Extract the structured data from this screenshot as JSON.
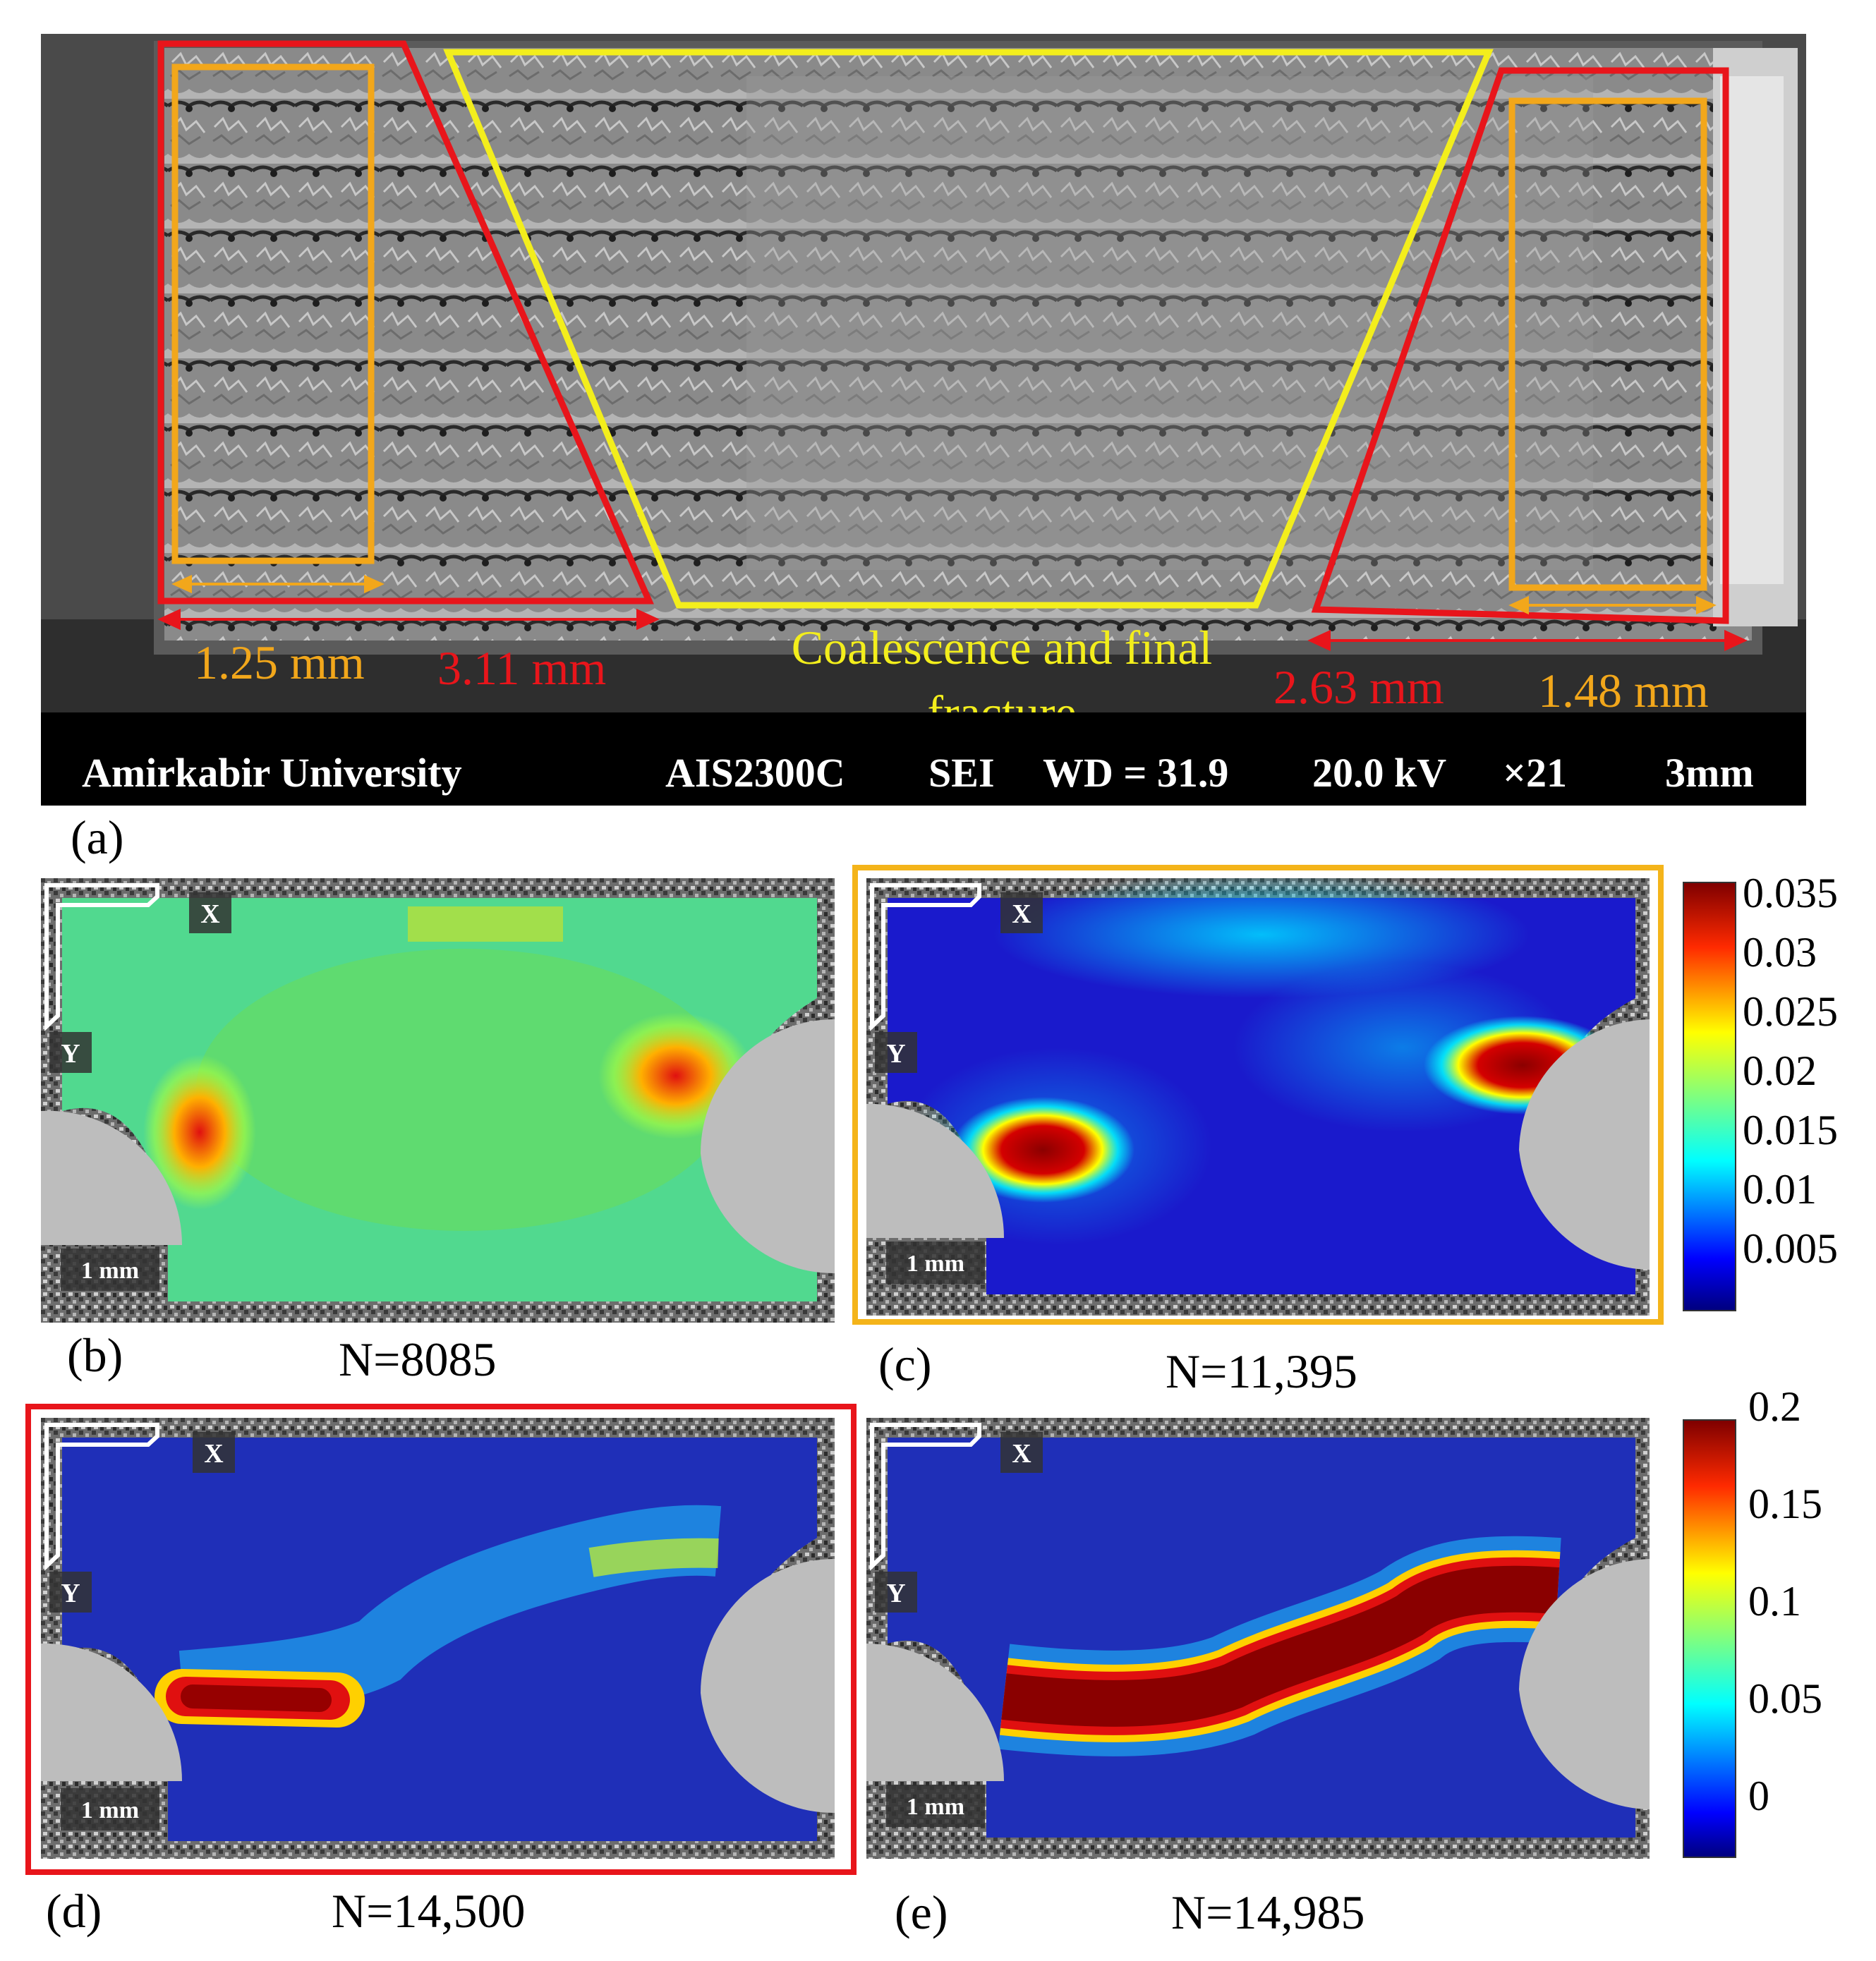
{
  "panel_a": {
    "label": "(a)",
    "measure_left_inner": "1.25 mm",
    "measure_left_outer": "3.11 mm",
    "measure_right_outer": "2.63 mm",
    "measure_right_inner": "1.48 mm",
    "center_caption_line1": "Coalescence and final",
    "center_caption_line2": "fracture",
    "info_bar": {
      "institution": "Amirkabir University",
      "instrument": "AIS2300C",
      "mode": "SEI",
      "wd": "WD = 31.9",
      "kv": "20.0 kV",
      "magnification": "×21",
      "scale": "3mm"
    },
    "colors": {
      "outer_box": "#e8151b",
      "inner_box": "#f2a71b",
      "center_box": "#f3ee1c"
    }
  },
  "dic_panels": [
    {
      "id": "b",
      "label": "(b)",
      "cycles": "N=8085",
      "axis_x": "X",
      "axis_y": "Y",
      "scale": "1 mm"
    },
    {
      "id": "c",
      "label": "(c)",
      "cycles": "N=11,395",
      "axis_x": "X",
      "axis_y": "Y",
      "scale": "1 mm",
      "frame_color": "#f4b41a"
    },
    {
      "id": "d",
      "label": "(d)",
      "cycles": "N=14,500",
      "axis_x": "X",
      "axis_y": "Y",
      "scale": "1 mm",
      "frame_color": "#e8151b"
    },
    {
      "id": "e",
      "label": "(e)",
      "cycles": "N=14,985",
      "axis_x": "X",
      "axis_y": "Y",
      "scale": "1 mm"
    }
  ],
  "colorbar_top": {
    "ticks": [
      "0.035",
      "0.03",
      "0.025",
      "0.02",
      "0.015",
      "0.01",
      "0.005"
    ]
  },
  "colorbar_bottom": {
    "ticks": [
      "0.2",
      "0.15",
      "0.1",
      "0.05",
      "0"
    ]
  },
  "jet_colors": [
    "#00007f",
    "#0000ff",
    "#007fff",
    "#00ffff",
    "#7fff7f",
    "#ffff00",
    "#ff7f00",
    "#ff0000",
    "#7f0000"
  ]
}
